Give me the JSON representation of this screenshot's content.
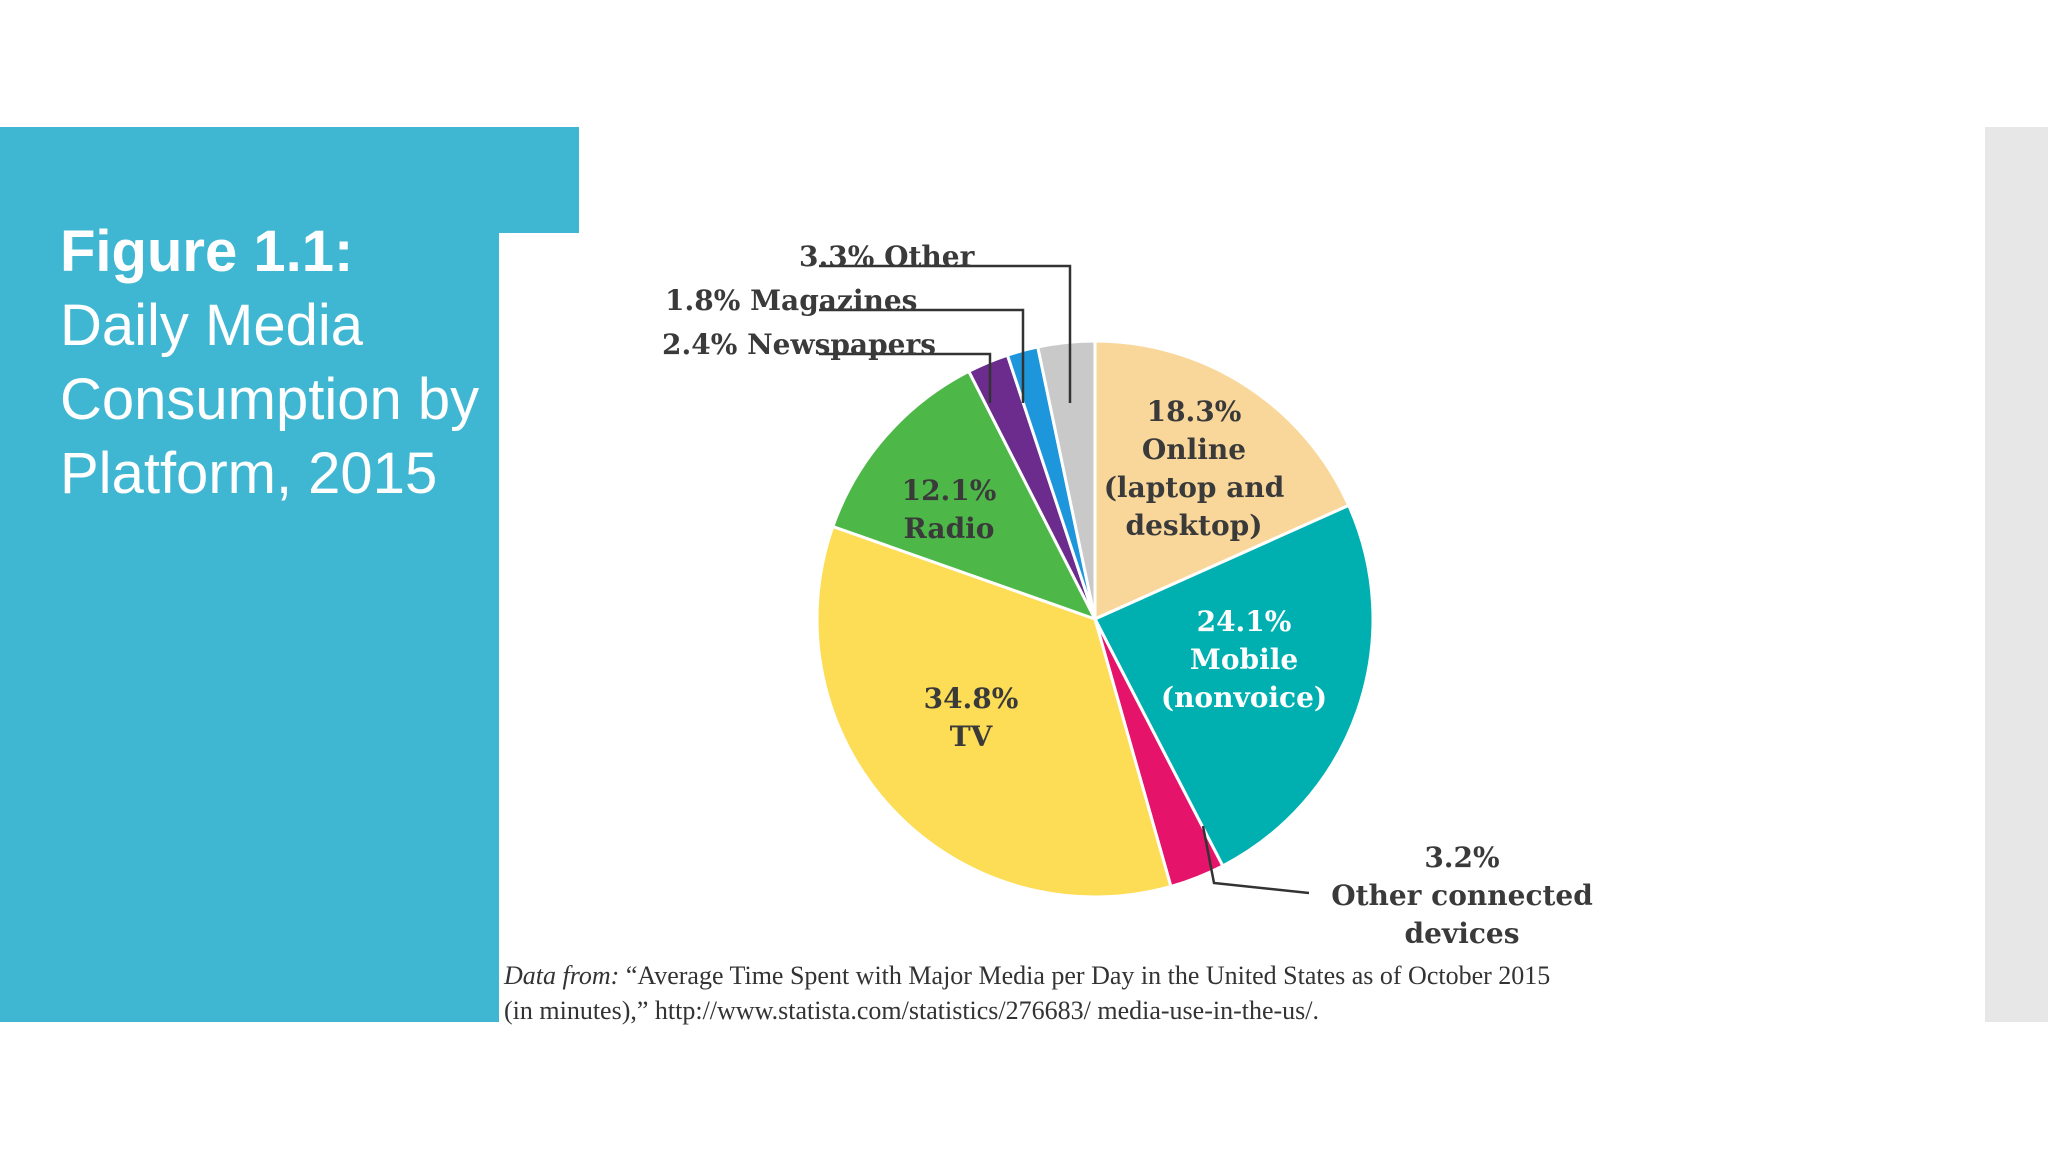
{
  "slide": {
    "title_bold": "Figure 1.1:",
    "title_rest": "Daily Media Consumption by Platform, 2015"
  },
  "source": {
    "lead": "Data from:",
    "text": " “Average Time Spent with Major Media per Day in the United States as of October 2015 (in minutes),” http://www.statista.com/statistics/276683/ media-use-in-the-us/."
  },
  "colors": {
    "panel": "#40B7D2",
    "online": "#F9D79A",
    "mobile": "#00B0B1",
    "other_connected": "#E6136B",
    "tv": "#FCDD55",
    "radio": "#4DB848",
    "newspapers": "#6B2C8E",
    "magazines": "#1E96DC",
    "other": "#C9C9C9"
  },
  "chart_data": {
    "type": "pie",
    "title": "",
    "slices": [
      {
        "key": "online",
        "label_lines": [
          "18.3%",
          "Online",
          "(laptop and",
          "desktop)"
        ],
        "value": 18.3
      },
      {
        "key": "mobile",
        "label_lines": [
          "24.1%",
          "Mobile",
          "(nonvoice)"
        ],
        "value": 24.1
      },
      {
        "key": "other_connected",
        "label_lines": [
          "3.2%",
          "Other connected",
          "devices"
        ],
        "value": 3.2
      },
      {
        "key": "tv",
        "label_lines": [
          "34.8%",
          "TV"
        ],
        "value": 34.8
      },
      {
        "key": "radio",
        "label_lines": [
          "12.1%",
          "Radio"
        ],
        "value": 12.1
      },
      {
        "key": "newspapers",
        "label_lines": [
          "2.4% Newspapers"
        ],
        "value": 2.4
      },
      {
        "key": "magazines",
        "label_lines": [
          "1.8% Magazines"
        ],
        "value": 1.8
      },
      {
        "key": "other",
        "label_lines": [
          "3.3% Other"
        ],
        "value": 3.3
      }
    ]
  }
}
